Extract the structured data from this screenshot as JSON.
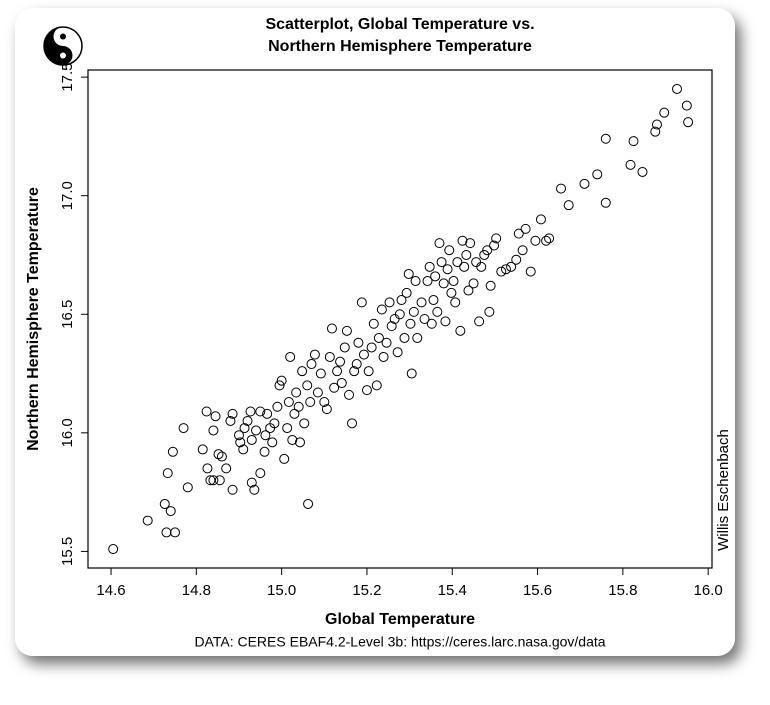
{
  "chart_data": {
    "type": "scatter",
    "title": [
      "Scatterplot, Global Temperature vs.",
      "Northern Hemisphere Temperature"
    ],
    "x_label": "Global Temperature",
    "y_label": "Northern Hemisphere Temperature",
    "signature": "Willis Eschenbach",
    "caption": "DATA: CERES EBAF4.2-Level 3b: https://ceres.larc.nasa.gov/data",
    "marker_color": "#000000",
    "xlim": [
      14.546,
      16.009
    ],
    "ylim": [
      15.43,
      17.53
    ],
    "xticks": [
      14.6,
      14.8,
      {
        "value": 15,
        "label": "15.0"
      },
      15.2,
      15.4,
      15.6,
      15.8,
      {
        "value": 16,
        "label": "16.0"
      }
    ],
    "yticks": [
      15.5,
      {
        "value": 16,
        "label": "16.0"
      },
      16.5,
      {
        "value": 17,
        "label": "17.0"
      },
      17.5
    ],
    "x": [
      14.605,
      14.686,
      14.726,
      14.73,
      14.74,
      14.75,
      14.733,
      14.745,
      14.77,
      14.78,
      14.815,
      14.824,
      14.826,
      14.833,
      14.84,
      14.84,
      14.845,
      14.852,
      14.86,
      14.855,
      14.87,
      14.88,
      14.885,
      14.885,
      14.9,
      14.903,
      14.91,
      14.913,
      14.92,
      14.927,
      14.93,
      14.936,
      14.93,
      14.94,
      14.95,
      14.95,
      14.96,
      14.962,
      14.966,
      14.973,
      14.978,
      14.983,
      14.99,
      14.995,
      15.0,
      15.006,
      15.013,
      15.017,
      15.02,
      15.025,
      15.03,
      15.034,
      15.04,
      15.043,
      15.048,
      15.053,
      15.06,
      15.062,
      15.067,
      15.07,
      15.078,
      15.085,
      15.092,
      15.1,
      15.106,
      15.113,
      15.118,
      15.123,
      15.13,
      15.137,
      15.141,
      15.148,
      15.153,
      15.158,
      15.165,
      15.17,
      15.176,
      15.18,
      15.188,
      15.193,
      15.2,
      15.204,
      15.211,
      15.216,
      15.223,
      15.228,
      15.235,
      15.239,
      15.246,
      15.253,
      15.258,
      15.265,
      15.272,
      15.277,
      15.281,
      15.288,
      15.293,
      15.298,
      15.302,
      15.305,
      15.31,
      15.314,
      15.318,
      15.328,
      15.335,
      15.342,
      15.347,
      15.352,
      15.356,
      15.36,
      15.365,
      15.37,
      15.375,
      15.38,
      15.384,
      15.389,
      15.393,
      15.398,
      15.403,
      15.407,
      15.412,
      15.419,
      15.424,
      15.428,
      15.433,
      15.438,
      15.442,
      15.45,
      15.456,
      15.463,
      15.468,
      15.475,
      15.482,
      15.487,
      15.49,
      15.498,
      15.503,
      15.515,
      15.526,
      15.538,
      15.55,
      15.556,
      15.565,
      15.572,
      15.584,
      15.595,
      15.608,
      15.62,
      15.627,
      15.655,
      15.673,
      15.71,
      15.74,
      15.76,
      15.76,
      15.818,
      15.825,
      15.846,
      15.876,
      15.88,
      15.897,
      15.927,
      15.95,
      15.953
    ],
    "y": [
      15.51,
      15.63,
      15.7,
      15.58,
      15.67,
      15.58,
      15.83,
      15.92,
      16.02,
      15.77,
      15.93,
      16.09,
      15.85,
      15.8,
      15.8,
      16.01,
      16.07,
      15.91,
      15.9,
      15.8,
      15.85,
      16.05,
      16.08,
      15.76,
      15.99,
      15.96,
      15.93,
      16.02,
      16.05,
      16.09,
      15.79,
      15.76,
      15.97,
      16.01,
      16.09,
      15.83,
      15.92,
      15.99,
      16.08,
      16.02,
      15.96,
      16.04,
      16.11,
      16.2,
      16.22,
      15.89,
      16.02,
      16.13,
      16.32,
      15.97,
      16.08,
      16.17,
      16.11,
      15.96,
      16.26,
      16.04,
      16.2,
      15.7,
      16.13,
      16.29,
      16.33,
      16.17,
      16.25,
      16.13,
      16.1,
      16.32,
      16.44,
      16.19,
      16.26,
      16.3,
      16.21,
      16.36,
      16.43,
      16.16,
      16.04,
      16.26,
      16.29,
      16.38,
      16.55,
      16.33,
      16.18,
      16.26,
      16.36,
      16.46,
      16.2,
      16.4,
      16.52,
      16.32,
      16.38,
      16.55,
      16.45,
      16.48,
      16.34,
      16.5,
      16.56,
      16.4,
      16.59,
      16.67,
      16.46,
      16.25,
      16.51,
      16.64,
      16.4,
      16.55,
      16.48,
      16.64,
      16.7,
      16.46,
      16.56,
      16.66,
      16.51,
      16.8,
      16.72,
      16.63,
      16.47,
      16.69,
      16.77,
      16.59,
      16.64,
      16.55,
      16.72,
      16.43,
      16.81,
      16.7,
      16.75,
      16.6,
      16.8,
      16.63,
      16.72,
      16.47,
      16.7,
      16.75,
      16.77,
      16.51,
      16.62,
      16.79,
      16.82,
      16.68,
      16.69,
      16.7,
      16.73,
      16.84,
      16.77,
      16.86,
      16.68,
      16.81,
      16.9,
      16.81,
      16.82,
      17.03,
      16.96,
      17.05,
      17.09,
      17.24,
      16.97,
      17.13,
      17.23,
      17.1,
      17.27,
      17.3,
      17.35,
      17.45,
      17.38,
      17.31
    ]
  }
}
